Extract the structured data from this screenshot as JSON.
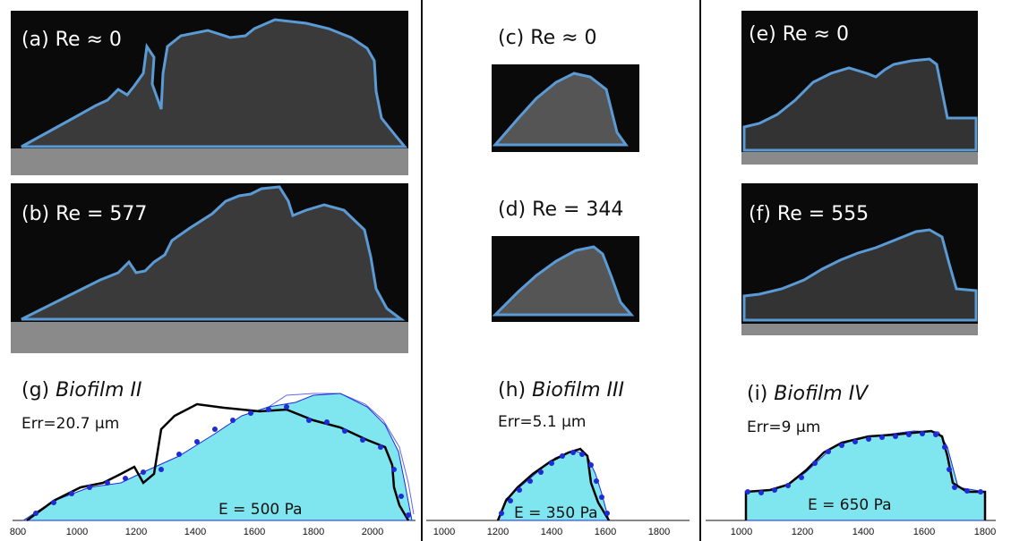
{
  "colors": {
    "outline": "#5b9bd5",
    "fill": "#7fe6ef",
    "simulation_line": "#000000",
    "dots": "#1f2bd8",
    "image_bg": "#0a0a0a"
  },
  "panels": {
    "a": {
      "tag": "(a)",
      "text": "Re ≈ 0"
    },
    "b": {
      "tag": "(b)",
      "text": "Re = 577"
    },
    "c": {
      "tag": "(c)",
      "text": "Re ≈ 0"
    },
    "d": {
      "tag": "(d)",
      "text": "Re = 344"
    },
    "e": {
      "tag": "(e)",
      "text": "Re ≈ 0"
    },
    "f": {
      "tag": "(f)",
      "text": "Re = 555"
    }
  },
  "plots": {
    "g": {
      "tag": "(g)",
      "title": "Biofilm II",
      "err": "Err=20.7 μm",
      "modulus": "E = 500 Pa",
      "ticks": [
        "800",
        "1000",
        "1200",
        "1400",
        "1600",
        "1800",
        "2000"
      ]
    },
    "h": {
      "tag": "(h)",
      "title": "Biofilm III",
      "err": "Err=5.1 μm",
      "modulus": "E = 350 Pa",
      "ticks": [
        "1000",
        "1200",
        "1400",
        "1600",
        "1800"
      ]
    },
    "i": {
      "tag": "(i)",
      "title": "Biofilm IV",
      "err": "Err=9 μm",
      "modulus": "E = 650 Pa",
      "ticks": [
        "1000",
        "1200",
        "1400",
        "1600",
        "1800"
      ]
    }
  }
}
